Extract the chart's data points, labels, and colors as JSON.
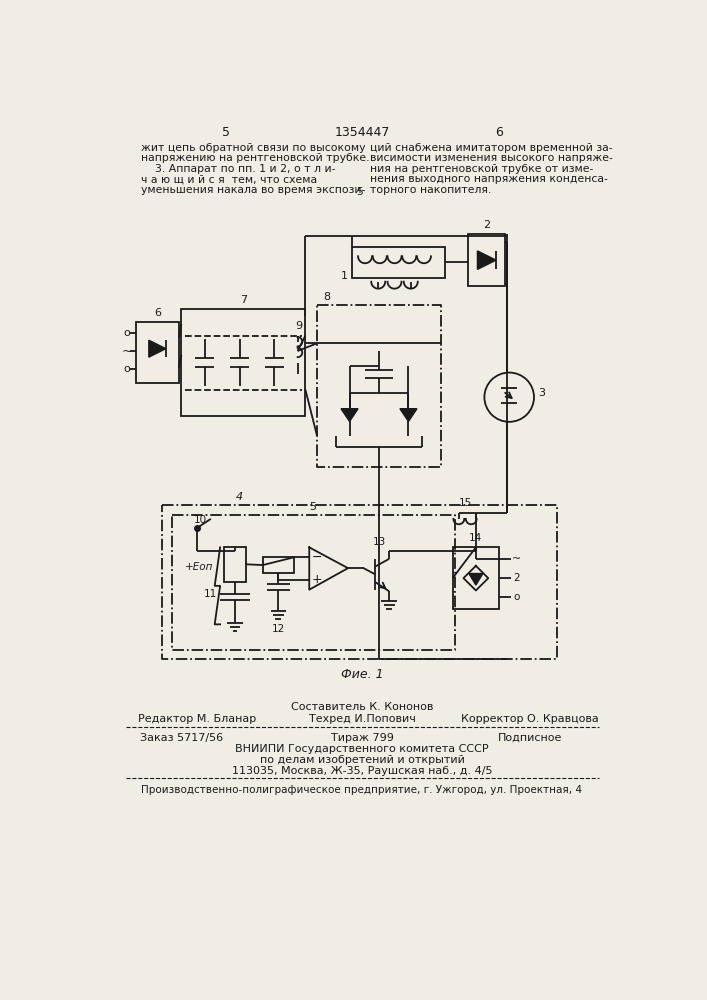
{
  "bg_color": "#f2ede4",
  "line_color": "#1a1a1a",
  "text_color": "#1a1a1a",
  "page_num_left": "5",
  "page_num_center": "1354447",
  "page_num_right": "6",
  "top_text_left": [
    "жит цепь обратной связи по высокому",
    "напряжению на рентгеновской трубке.",
    "    3. Аппарат по пп. 1 и 2, о т л и-",
    "ч а ю щ и й с я  тем, что схема",
    "уменьшения накала во время экспози-"
  ],
  "top_text_right": [
    "ций снабжена имитатором временной за-",
    "висимости изменения высокого напряже-",
    "ния на рентгеновской трубке от изме-",
    "нения выходного напряжения конденса-",
    "торного накопителя."
  ],
  "fig_caption": "Фие. 1",
  "footer_sostavitel": "Составитель К. Кононов",
  "footer_line1_left": "Редактор М. Бланар",
  "footer_line1_center": "Техред И.Попович",
  "footer_line1_right": "Корректор О. Кравцова",
  "footer_zakaz": "Заказ 5717/56",
  "footer_tirazh": "Тираж 799",
  "footer_podpisnoe": "Подписное",
  "footer_vnipi": "ВНИИПИ Государственного комитета СССР",
  "footer_po_delam": "по делам изобретений и открытий",
  "footer_address": "113035, Москва, Ж-35, Раушская наб., д. 4/5",
  "footer_proizv": "Производственно-полиграфическое предприятие, г. Ужгород, ул. Проектная, 4"
}
